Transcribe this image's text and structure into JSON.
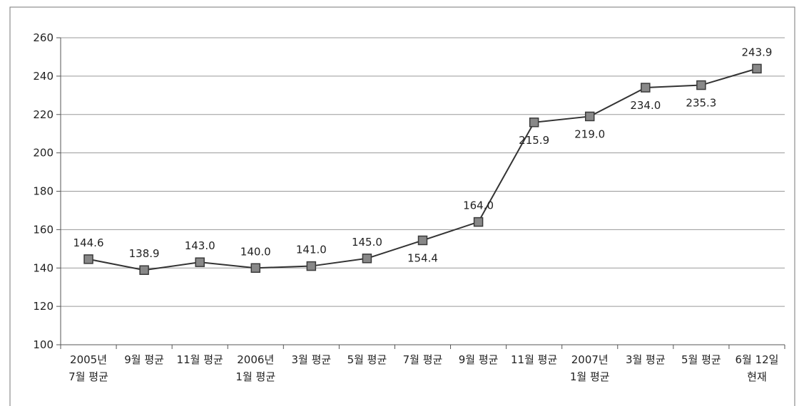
{
  "chart_data": {
    "type": "line",
    "categories": [
      [
        "2005년",
        "7월 평균"
      ],
      [
        "9월 평균"
      ],
      [
        "11월 평균"
      ],
      [
        "2006년",
        "1월 평균"
      ],
      [
        "3월 평균"
      ],
      [
        "5월 평균"
      ],
      [
        "7월 평균"
      ],
      [
        "9월 평균"
      ],
      [
        "11월 평균"
      ],
      [
        "2007년",
        "1월 평균"
      ],
      [
        "3월 평균"
      ],
      [
        "5월 평균"
      ],
      [
        "6월 12일",
        "현재"
      ]
    ],
    "series": [
      {
        "values": [
          144.6,
          138.9,
          143.0,
          140.0,
          141.0,
          145.0,
          154.4,
          164.0,
          215.9,
          219.0,
          234.0,
          235.3,
          243.9
        ],
        "labels": [
          "144.6",
          "138.9",
          "143.0",
          "140.0",
          "141.0",
          "145.0",
          "154.4",
          "164.0",
          "215.9",
          "219.0",
          "234.0",
          "235.3",
          "243.9"
        ],
        "label_position": [
          "above",
          "above",
          "above",
          "above",
          "above",
          "above",
          "below",
          "above",
          "below",
          "below",
          "below",
          "below",
          "above"
        ]
      }
    ],
    "ylim": [
      100,
      260
    ],
    "yticks": [
      100,
      120,
      140,
      160,
      180,
      200,
      220,
      240,
      260
    ],
    "grid": true,
    "title": "",
    "xlabel": "",
    "ylabel": "",
    "colors": {
      "line": "#333333",
      "marker_fill": "#888888",
      "marker_stroke": "#3a3a3a",
      "grid": "#999999",
      "axis": "#555555",
      "text": "#222222",
      "frame": "#777777"
    }
  }
}
